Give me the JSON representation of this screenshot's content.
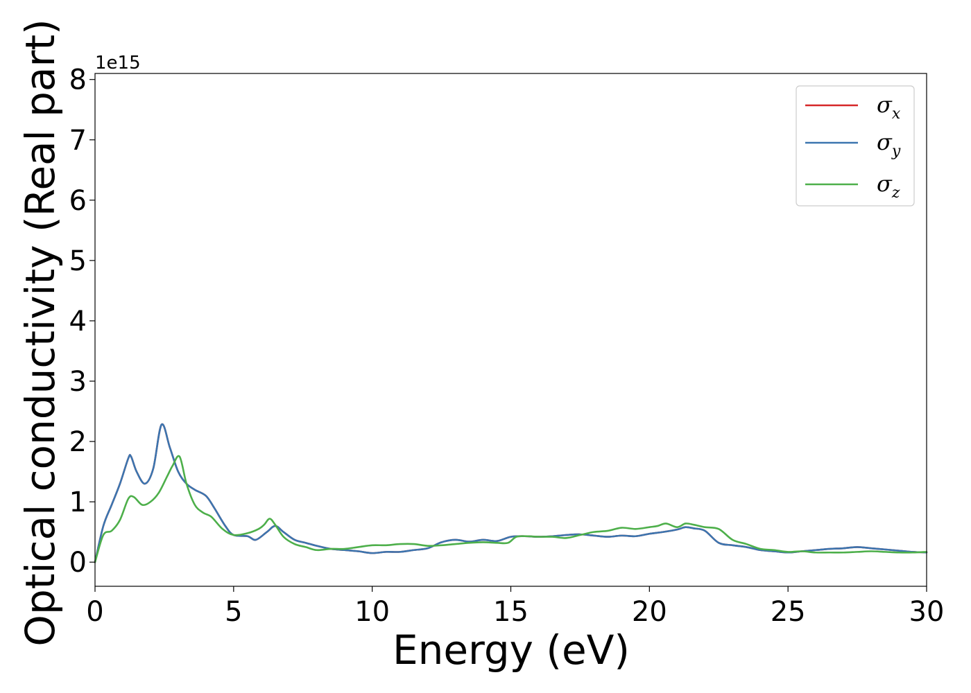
{
  "chart_data": {
    "type": "line",
    "xlabel": "Energy (eV)",
    "ylabel": "Optical conductivity (Real part)",
    "y_offset_label": "1e15",
    "xlim": [
      0,
      30
    ],
    "ylim": [
      -0.4,
      8.1
    ],
    "y_scale": 1000000000000000.0,
    "xticks": [
      "0",
      "5",
      "10",
      "15",
      "20",
      "25",
      "30"
    ],
    "yticks": [
      "0",
      "1",
      "2",
      "3",
      "4",
      "5",
      "6",
      "7",
      "8"
    ],
    "grid": false,
    "legend": {
      "placement": "top-right"
    },
    "colors": {
      "sigma_x": "#d62728",
      "sigma_y": "#3b75af",
      "sigma_z": "#4daf4a"
    },
    "series": [
      {
        "name": "σx",
        "symbol": "σ",
        "subscript": "x",
        "color": "#d62728",
        "x": [
          0,
          0.3,
          0.6,
          0.9,
          1.2,
          1.3,
          1.5,
          1.8,
          2.1,
          2.4,
          2.7,
          3.0,
          3.3,
          3.6,
          4.0,
          4.3,
          4.7,
          5.0,
          5.5,
          5.8,
          6.2,
          6.5,
          6.8,
          7.2,
          7.6,
          8.0,
          8.5,
          9.0,
          9.5,
          10.0,
          10.5,
          11.0,
          11.5,
          12.0,
          12.5,
          13.0,
          13.5,
          14.0,
          14.5,
          15.0,
          15.5,
          16.0,
          16.5,
          17.0,
          17.5,
          18.0,
          18.5,
          19.0,
          19.5,
          20.0,
          20.5,
          21.0,
          21.3,
          21.6,
          22.0,
          22.5,
          23.0,
          23.5,
          24.0,
          24.5,
          25.0,
          25.5,
          26.0,
          26.5,
          27.0,
          27.5,
          28.0,
          28.5,
          29.0,
          29.5,
          30.0
        ],
        "y": [
          0.0,
          0.6,
          0.95,
          1.3,
          1.72,
          1.75,
          1.5,
          1.3,
          1.55,
          2.28,
          1.9,
          1.5,
          1.3,
          1.2,
          1.1,
          0.9,
          0.6,
          0.45,
          0.43,
          0.37,
          0.5,
          0.6,
          0.5,
          0.37,
          0.32,
          0.27,
          0.22,
          0.2,
          0.18,
          0.15,
          0.17,
          0.17,
          0.2,
          0.23,
          0.33,
          0.37,
          0.34,
          0.37,
          0.35,
          0.42,
          0.43,
          0.42,
          0.43,
          0.45,
          0.46,
          0.44,
          0.42,
          0.44,
          0.43,
          0.47,
          0.5,
          0.54,
          0.58,
          0.56,
          0.52,
          0.32,
          0.28,
          0.25,
          0.2,
          0.18,
          0.16,
          0.18,
          0.2,
          0.22,
          0.23,
          0.25,
          0.23,
          0.21,
          0.19,
          0.17,
          0.16
        ]
      },
      {
        "name": "σy",
        "symbol": "σ",
        "subscript": "y",
        "color": "#3b75af",
        "x": [
          0,
          0.3,
          0.6,
          0.9,
          1.2,
          1.3,
          1.5,
          1.8,
          2.1,
          2.4,
          2.7,
          3.0,
          3.3,
          3.6,
          4.0,
          4.3,
          4.7,
          5.0,
          5.5,
          5.8,
          6.2,
          6.5,
          6.8,
          7.2,
          7.6,
          8.0,
          8.5,
          9.0,
          9.5,
          10.0,
          10.5,
          11.0,
          11.5,
          12.0,
          12.5,
          13.0,
          13.5,
          14.0,
          14.5,
          15.0,
          15.5,
          16.0,
          16.5,
          17.0,
          17.5,
          18.0,
          18.5,
          19.0,
          19.5,
          20.0,
          20.5,
          21.0,
          21.3,
          21.6,
          22.0,
          22.5,
          23.0,
          23.5,
          24.0,
          24.5,
          25.0,
          25.5,
          26.0,
          26.5,
          27.0,
          27.5,
          28.0,
          28.5,
          29.0,
          29.5,
          30.0
        ],
        "y": [
          0.0,
          0.6,
          0.95,
          1.3,
          1.72,
          1.75,
          1.5,
          1.3,
          1.55,
          2.28,
          1.9,
          1.5,
          1.3,
          1.2,
          1.1,
          0.9,
          0.6,
          0.45,
          0.43,
          0.37,
          0.5,
          0.6,
          0.5,
          0.37,
          0.32,
          0.27,
          0.22,
          0.2,
          0.18,
          0.15,
          0.17,
          0.17,
          0.2,
          0.23,
          0.33,
          0.37,
          0.34,
          0.37,
          0.35,
          0.42,
          0.43,
          0.42,
          0.43,
          0.45,
          0.46,
          0.44,
          0.42,
          0.44,
          0.43,
          0.47,
          0.5,
          0.54,
          0.58,
          0.56,
          0.52,
          0.32,
          0.28,
          0.25,
          0.2,
          0.18,
          0.16,
          0.18,
          0.2,
          0.22,
          0.23,
          0.25,
          0.23,
          0.21,
          0.19,
          0.17,
          0.16
        ]
      },
      {
        "name": "σz",
        "symbol": "σ",
        "subscript": "z",
        "color": "#4daf4a",
        "x": [
          0,
          0.3,
          0.6,
          0.9,
          1.2,
          1.4,
          1.7,
          2.0,
          2.3,
          2.6,
          2.8,
          3.05,
          3.3,
          3.6,
          3.9,
          4.2,
          4.6,
          5.0,
          5.5,
          5.9,
          6.1,
          6.3,
          6.5,
          6.8,
          7.2,
          7.6,
          8.0,
          8.5,
          9.0,
          9.5,
          10.0,
          10.5,
          11.0,
          11.5,
          12.0,
          12.5,
          13.0,
          13.5,
          14.0,
          14.5,
          14.9,
          15.2,
          15.6,
          16.0,
          16.5,
          17.0,
          17.5,
          18.0,
          18.5,
          19.0,
          19.5,
          20.0,
          20.3,
          20.6,
          21.0,
          21.3,
          21.6,
          22.0,
          22.5,
          23.0,
          23.5,
          24.0,
          24.5,
          25.0,
          25.5,
          26.0,
          26.5,
          27.0,
          27.5,
          28.0,
          28.5,
          29.0,
          29.5,
          30.0
        ],
        "y": [
          0.0,
          0.45,
          0.52,
          0.7,
          1.05,
          1.08,
          0.95,
          1.0,
          1.15,
          1.42,
          1.6,
          1.75,
          1.3,
          0.95,
          0.82,
          0.75,
          0.55,
          0.45,
          0.48,
          0.55,
          0.62,
          0.72,
          0.62,
          0.42,
          0.3,
          0.25,
          0.2,
          0.22,
          0.22,
          0.25,
          0.28,
          0.28,
          0.3,
          0.3,
          0.27,
          0.28,
          0.3,
          0.32,
          0.33,
          0.32,
          0.32,
          0.42,
          0.43,
          0.42,
          0.42,
          0.4,
          0.45,
          0.5,
          0.52,
          0.57,
          0.55,
          0.58,
          0.6,
          0.64,
          0.58,
          0.64,
          0.62,
          0.58,
          0.55,
          0.37,
          0.3,
          0.22,
          0.2,
          0.17,
          0.18,
          0.16,
          0.16,
          0.16,
          0.17,
          0.18,
          0.17,
          0.16,
          0.16,
          0.17
        ]
      }
    ]
  }
}
